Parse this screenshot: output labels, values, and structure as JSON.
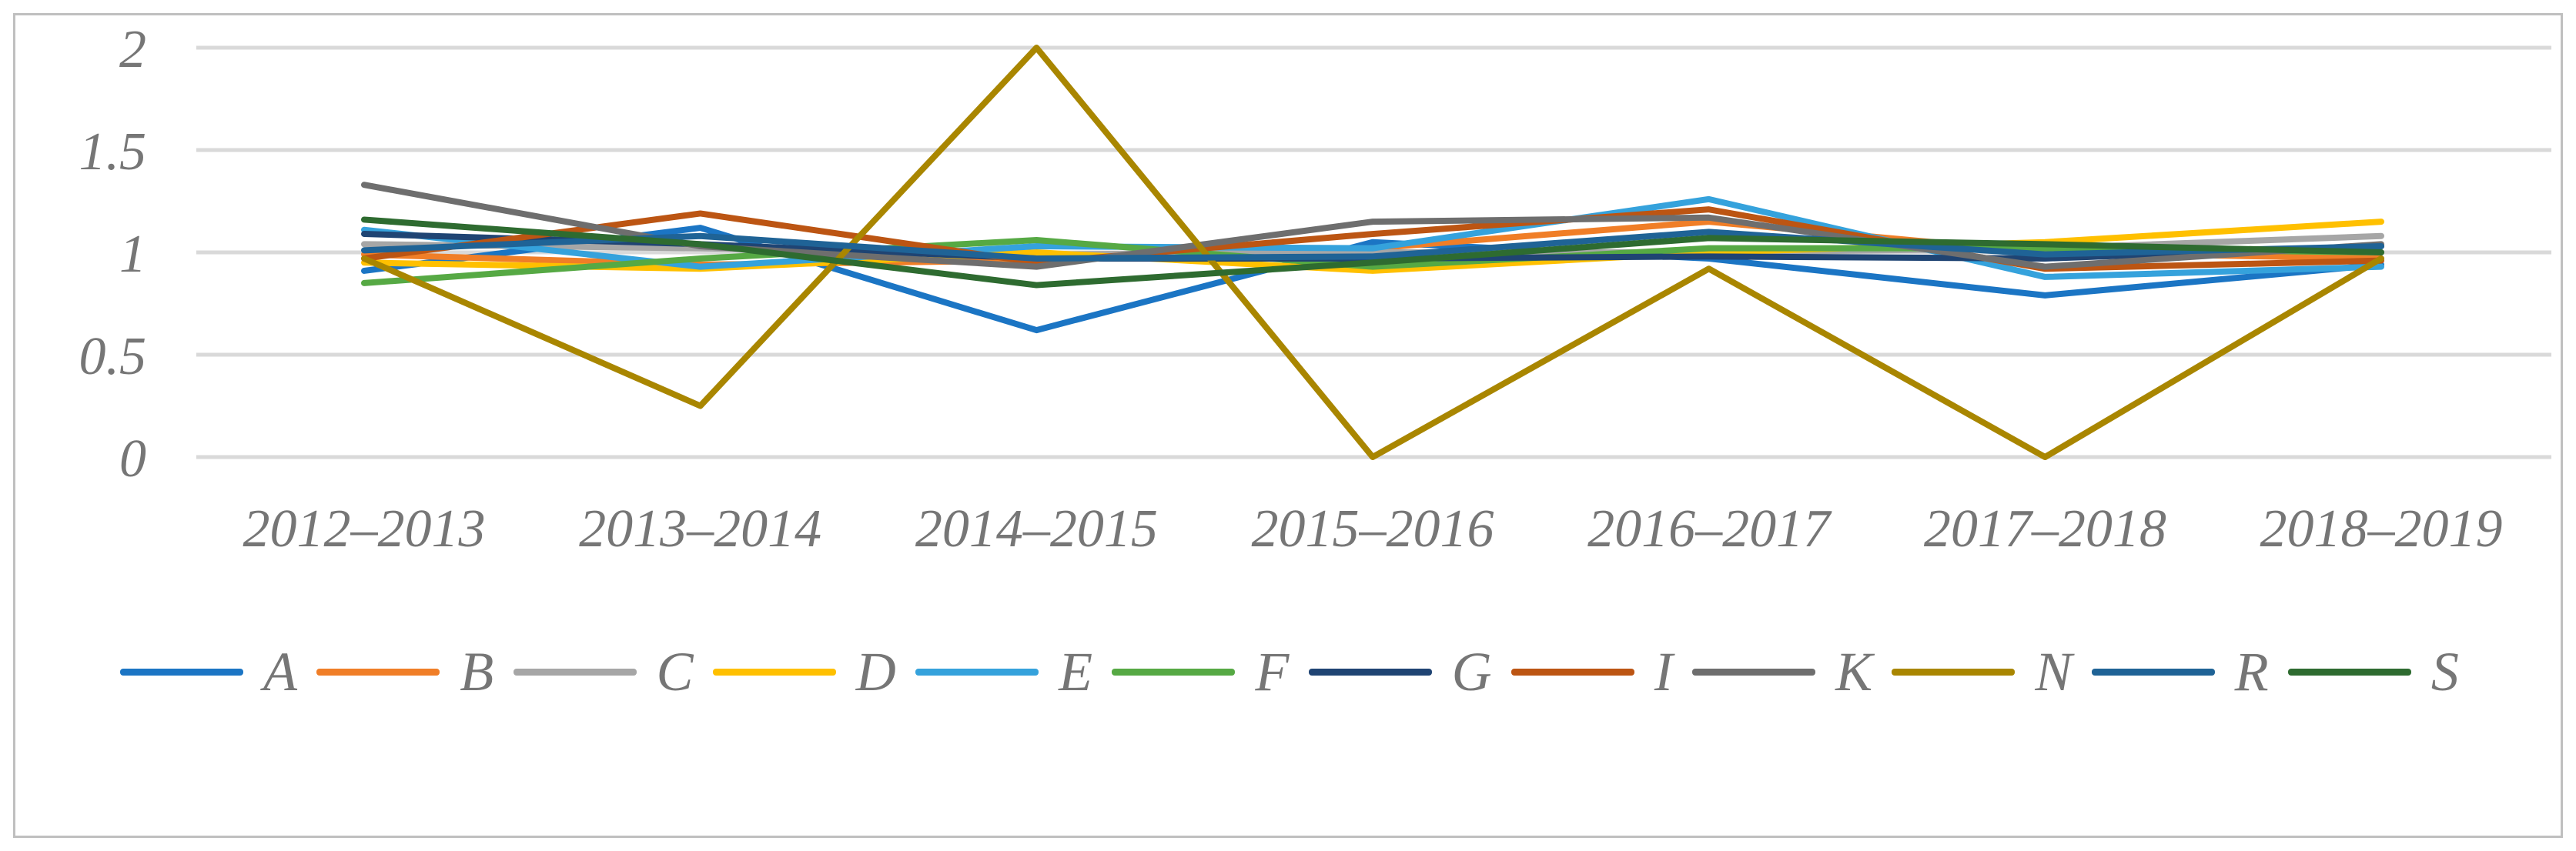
{
  "chart_data": {
    "type": "line",
    "title": "",
    "xlabel": "",
    "ylabel": "",
    "categories": [
      "2012–2013",
      "2013–2014",
      "2014–2015",
      "2015–2016",
      "2016–2017",
      "2017–2018",
      "2018–2019"
    ],
    "series": [
      {
        "name": "A",
        "color": "#1B75C4",
        "values": [
          0.91,
          1.12,
          0.62,
          1.05,
          0.97,
          0.79,
          0.94
        ]
      },
      {
        "name": "B",
        "color": "#F07E27",
        "values": [
          0.99,
          0.94,
          0.96,
          1.02,
          1.15,
          1.0,
          0.97
        ]
      },
      {
        "name": "C",
        "color": "#A6A6A6",
        "values": [
          1.04,
          1.02,
          0.99,
          1.0,
          1.0,
          1.02,
          1.08
        ]
      },
      {
        "name": "D",
        "color": "#FFC000",
        "values": [
          0.95,
          0.92,
          1.0,
          0.91,
          1.0,
          1.05,
          1.15
        ]
      },
      {
        "name": "E",
        "color": "#35A2DC",
        "values": [
          1.11,
          0.93,
          1.03,
          1.02,
          1.26,
          0.88,
          0.93
        ]
      },
      {
        "name": "F",
        "color": "#56A944",
        "values": [
          0.85,
          0.97,
          1.06,
          0.93,
          1.02,
          1.02,
          1.0
        ]
      },
      {
        "name": "G",
        "color": "#1F4473",
        "values": [
          1.09,
          1.04,
          0.97,
          0.97,
          0.98,
          0.97,
          1.03
        ]
      },
      {
        "name": "I",
        "color": "#BC5513",
        "values": [
          0.97,
          1.19,
          0.95,
          1.09,
          1.21,
          0.92,
          0.96
        ]
      },
      {
        "name": "K",
        "color": "#6E6E6E",
        "values": [
          1.33,
          1.03,
          0.93,
          1.15,
          1.17,
          0.93,
          1.04
        ]
      },
      {
        "name": "N",
        "color": "#A98600",
        "values": [
          0.97,
          0.25,
          2.0,
          0.0,
          0.92,
          0.0,
          0.97
        ]
      },
      {
        "name": "R",
        "color": "#1F6396",
        "values": [
          1.01,
          1.08,
          0.97,
          0.98,
          1.1,
          0.99,
          1.03
        ]
      },
      {
        "name": "S",
        "color": "#2E6B30",
        "values": [
          1.16,
          1.04,
          0.84,
          0.95,
          1.07,
          1.04,
          1.0
        ]
      }
    ],
    "ylim": [
      0,
      2
    ],
    "yticks": [
      0,
      0.5,
      1,
      1.5,
      2
    ],
    "ytick_labels": [
      "0",
      "0.5",
      "1",
      "1.5",
      "2"
    ],
    "grid": true,
    "legend_position": "bottom",
    "style": {
      "grid_color": "#D9D9D9",
      "axis_text_color": "#767676",
      "frame_border_color": "#BFBFBF",
      "line_width": 8
    }
  }
}
